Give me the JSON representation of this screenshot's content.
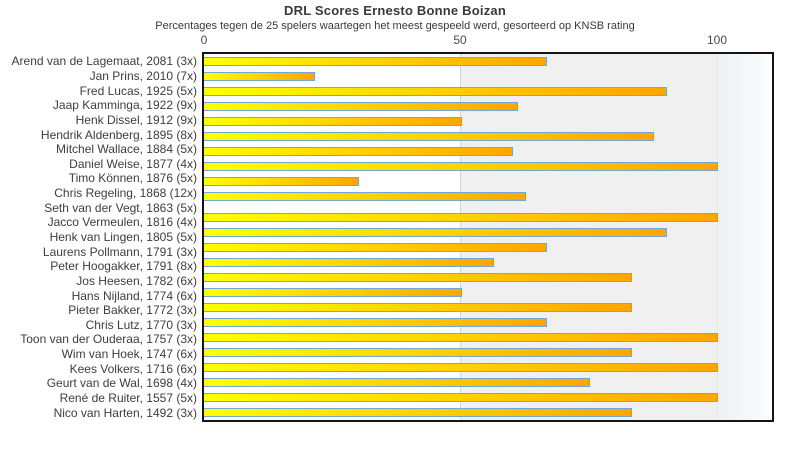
{
  "chart_data": {
    "type": "bar",
    "orientation": "horizontal",
    "title": "DRL Scores Ernesto Bonne Boizan",
    "subtitle": "Percentages tegen de 25 spelers waartegen het meest gespeeld werd, gesorteerd op KNSB rating",
    "x_axis": {
      "position": "top",
      "ticks": [
        0,
        50,
        100
      ],
      "tick_labels": [
        "0",
        "50",
        "100"
      ],
      "range": [
        0,
        111
      ],
      "unit": "percent"
    },
    "legend": "none",
    "grid": "vertical line at 50, shaded band 50-100, fade band beyond 100",
    "bars": [
      {
        "label": "Arend van de Lagemaat, 2081 (3x)",
        "player": "Arend van de Lagemaat",
        "rating": 2081,
        "games": 3,
        "value": 66.7
      },
      {
        "label": "Jan Prins, 2010 (7x)",
        "player": "Jan Prins",
        "rating": 2010,
        "games": 7,
        "value": 21.4
      },
      {
        "label": "Fred Lucas, 1925 (5x)",
        "player": "Fred Lucas",
        "rating": 1925,
        "games": 5,
        "value": 90
      },
      {
        "label": "Jaap Kamminga, 1922 (9x)",
        "player": "Jaap Kamminga",
        "rating": 1922,
        "games": 9,
        "value": 61.1
      },
      {
        "label": "Henk Dissel, 1912 (9x)",
        "player": "Henk Dissel",
        "rating": 1912,
        "games": 9,
        "value": 50
      },
      {
        "label": "Hendrik Aldenberg, 1895 (8x)",
        "player": "Hendrik Aldenberg",
        "rating": 1895,
        "games": 8,
        "value": 87.5
      },
      {
        "label": "Mitchel Wallace, 1884 (5x)",
        "player": "Mitchel Wallace",
        "rating": 1884,
        "games": 5,
        "value": 60
      },
      {
        "label": "Daniel Weise, 1877 (4x)",
        "player": "Daniel Weise",
        "rating": 1877,
        "games": 4,
        "value": 100
      },
      {
        "label": "Timo Können, 1876 (5x)",
        "player": "Timo Können",
        "rating": 1876,
        "games": 5,
        "value": 30
      },
      {
        "label": "Chris Regeling, 1868 (12x)",
        "player": "Chris Regeling",
        "rating": 1868,
        "games": 12,
        "value": 62.5
      },
      {
        "label": "Seth van der Vegt, 1863 (5x)",
        "player": "Seth van der Vegt",
        "rating": 1863,
        "games": 5,
        "value": 0
      },
      {
        "label": "Jacco Vermeulen, 1816 (4x)",
        "player": "Jacco Vermeulen",
        "rating": 1816,
        "games": 4,
        "value": 100
      },
      {
        "label": "Henk van Lingen, 1805 (5x)",
        "player": "Henk van Lingen",
        "rating": 1805,
        "games": 5,
        "value": 90
      },
      {
        "label": "Laurens Pollmann, 1791 (3x)",
        "player": "Laurens Pollmann",
        "rating": 1791,
        "games": 3,
        "value": 66.7
      },
      {
        "label": "Peter Hoogakker, 1791 (8x)",
        "player": "Peter Hoogakker",
        "rating": 1791,
        "games": 8,
        "value": 56.3
      },
      {
        "label": "Jos Heesen, 1782 (6x)",
        "player": "Jos Heesen",
        "rating": 1782,
        "games": 6,
        "value": 83.3
      },
      {
        "label": "Hans Nijland, 1774 (6x)",
        "player": "Hans Nijland",
        "rating": 1774,
        "games": 6,
        "value": 50
      },
      {
        "label": "Pieter Bakker, 1772 (3x)",
        "player": "Pieter Bakker",
        "rating": 1772,
        "games": 3,
        "value": 83.3
      },
      {
        "label": "Chris Lutz, 1770 (3x)",
        "player": "Chris Lutz",
        "rating": 1770,
        "games": 3,
        "value": 66.7
      },
      {
        "label": "Toon van der Ouderaa, 1757 (3x)",
        "player": "Toon van der Ouderaa",
        "rating": 1757,
        "games": 3,
        "value": 100
      },
      {
        "label": "Wim van Hoek, 1747 (6x)",
        "player": "Wim van Hoek",
        "rating": 1747,
        "games": 6,
        "value": 83.3
      },
      {
        "label": "Kees Volkers, 1716 (6x)",
        "player": "Kees Volkers",
        "rating": 1716,
        "games": 6,
        "value": 100
      },
      {
        "label": "Geurt van de Wal, 1698 (4x)",
        "player": "Geurt van de Wal",
        "rating": 1698,
        "games": 4,
        "value": 75
      },
      {
        "label": "René de Ruiter, 1557 (5x)",
        "player": "René de Ruiter",
        "rating": 1557,
        "games": 5,
        "value": 100
      },
      {
        "label": "Nico van Harten, 1492 (3x)",
        "player": "Nico van Harten",
        "rating": 1492,
        "games": 3,
        "value": 83.3
      }
    ],
    "colors": {
      "bar_gradient_start": "#ffff00",
      "bar_gradient_end": "#ffa500",
      "bar_border": "#6fa8dc",
      "plot_border": "#141414",
      "band_mid": "#f0f0f0",
      "gridline_50": "#d4d4d4",
      "text": "#3a3a3a"
    }
  }
}
